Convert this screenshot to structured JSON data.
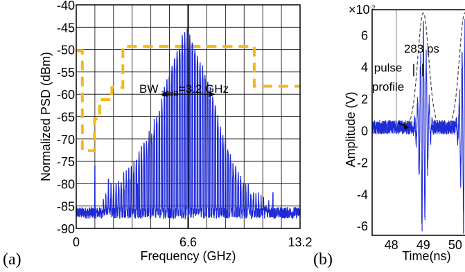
{
  "chart_data": [
    {
      "type": "line",
      "panel_label": "(a)",
      "xlabel": "Frequency (GHz)",
      "ylabel": "Normalized PSD (dBm)",
      "xlim": [
        0,
        13.2
      ],
      "ylim": [
        -90,
        -40
      ],
      "x_ticks": [
        {
          "value": 0,
          "label": "0"
        },
        {
          "value": 6.6,
          "label": "6.6"
        },
        {
          "value": 13.2,
          "label": "13.2"
        }
      ],
      "y_ticks": [
        {
          "value": -40,
          "label": "-40"
        },
        {
          "value": -45,
          "label": "-45"
        },
        {
          "value": -50,
          "label": "-50"
        },
        {
          "value": -55,
          "label": "-55"
        },
        {
          "value": -60,
          "label": "-60"
        },
        {
          "value": -65,
          "label": "-65"
        },
        {
          "value": -70,
          "label": "-70"
        },
        {
          "value": -75,
          "label": "-75"
        },
        {
          "value": -80,
          "label": "-80"
        },
        {
          "value": -85,
          "label": "-85"
        },
        {
          "value": -90,
          "label": "-90"
        }
      ],
      "grid": true,
      "mask": {
        "color": "#f4b91a",
        "x": [
          0,
          0.36,
          0.36,
          1.08,
          1.08,
          1.38,
          1.38,
          2.1,
          2.1,
          2.75,
          2.75,
          10.5,
          10.5,
          11.4,
          11.4,
          13.2
        ],
        "y": [
          -50.3,
          -50.3,
          -72.6,
          -72.6,
          -65.5,
          -65.5,
          -61.2,
          -61.2,
          -58.5,
          -58.5,
          -49.3,
          -49.3,
          -58.2,
          -58.2,
          -58.2,
          -58.2
        ]
      },
      "spectrum": {
        "color": "#1f2bd6",
        "noise_floor": -86.5,
        "center_ghz": 6.6,
        "line_spacing_ghz": 0.15,
        "peaks": [
          {
            "x": 1.9,
            "y": -80
          },
          {
            "x": 2.1,
            "y": -79
          },
          {
            "x": 2.5,
            "y": -78
          },
          {
            "x": 2.9,
            "y": -77
          },
          {
            "x": 3.3,
            "y": -75
          },
          {
            "x": 3.7,
            "y": -72
          },
          {
            "x": 4.1,
            "y": -69
          },
          {
            "x": 4.5,
            "y": -66
          },
          {
            "x": 4.9,
            "y": -62
          },
          {
            "x": 5.3,
            "y": -56
          },
          {
            "x": 5.7,
            "y": -51
          },
          {
            "x": 6.1,
            "y": -48
          },
          {
            "x": 6.5,
            "y": -44
          },
          {
            "x": 6.9,
            "y": -47
          },
          {
            "x": 7.3,
            "y": -52
          },
          {
            "x": 7.7,
            "y": -55
          },
          {
            "x": 8.1,
            "y": -60
          },
          {
            "x": 8.5,
            "y": -66
          },
          {
            "x": 8.9,
            "y": -70
          },
          {
            "x": 9.3,
            "y": -74
          },
          {
            "x": 9.7,
            "y": -77
          },
          {
            "x": 10.1,
            "y": -79
          },
          {
            "x": 10.6,
            "y": -81
          },
          {
            "x": 11.3,
            "y": -83
          }
        ],
        "spurs": [
          {
            "x": 1.1,
            "y": -76
          },
          {
            "x": 1.9,
            "y": -79
          },
          {
            "x": 3.6,
            "y": -80
          },
          {
            "x": 11.6,
            "y": -82
          }
        ]
      },
      "annotation": {
        "text_prefix": "BW",
        "subscript": "-10dB",
        "text_suffix": "=3.2 GHz",
        "arrow_from_ghz": 5.0,
        "arrow_to_ghz": 8.2,
        "arrow_y": -60.0
      }
    },
    {
      "type": "line",
      "panel_label": "(b)",
      "xlabel": "Time(ns)",
      "ylabel": "Amplitude (V)",
      "y_multiplier": "×10",
      "y_multiplier_exponent": "-2",
      "xlim": [
        47.4,
        50.5
      ],
      "ylim": [
        -6.6,
        7.6
      ],
      "x_ticks": [
        {
          "value": 48,
          "label": "48"
        },
        {
          "value": 49,
          "label": "49"
        },
        {
          "value": 50,
          "label": "50"
        }
      ],
      "y_ticks": [
        {
          "value": -6,
          "label": "-6"
        },
        {
          "value": -4,
          "label": "-4"
        },
        {
          "value": -2,
          "label": "-2"
        },
        {
          "value": 0,
          "label": "0"
        },
        {
          "value": 2,
          "label": "2"
        },
        {
          "value": 4,
          "label": "4"
        },
        {
          "value": 6,
          "label": "6"
        }
      ],
      "signal": {
        "color": "#1f2bd6",
        "pulse_centers_ns": [
          49.0,
          50.3
        ],
        "peak_amplitude": 7.2,
        "noise_amplitude": 0.45
      },
      "envelope": {
        "color": "#444444",
        "pulse_centers_ns": [
          49.0,
          50.3
        ],
        "peak": 7.1
      },
      "annotations": [
        {
          "text": "283 ps",
          "x": 48.95,
          "y": 4.9
        },
        {
          "text": "pulse",
          "x": 47.9,
          "y": 3.7
        },
        {
          "text": "profile",
          "x": 47.9,
          "y": 2.5
        }
      ]
    }
  ]
}
